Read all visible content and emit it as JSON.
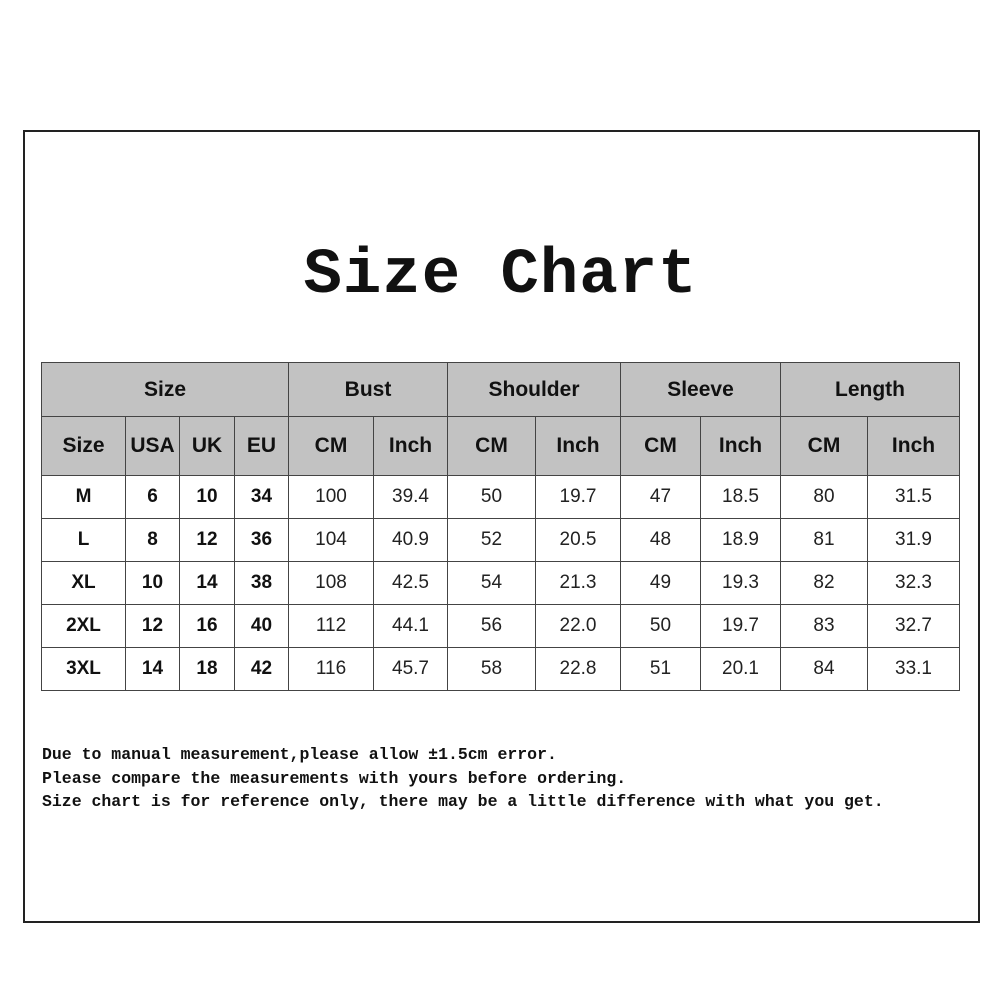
{
  "title": "Size Chart",
  "groups": [
    "Size",
    "Bust",
    "Shoulder",
    "Sleeve",
    "Length"
  ],
  "subheaders": [
    "Size",
    "USA",
    "UK",
    "EU",
    "CM",
    "Inch",
    "CM",
    "Inch",
    "CM",
    "Inch",
    "CM",
    "Inch"
  ],
  "rows": [
    [
      "M",
      "6",
      "10",
      "34",
      "100",
      "39.4",
      "50",
      "19.7",
      "47",
      "18.5",
      "80",
      "31.5"
    ],
    [
      "L",
      "8",
      "12",
      "36",
      "104",
      "40.9",
      "52",
      "20.5",
      "48",
      "18.9",
      "81",
      "31.9"
    ],
    [
      "XL",
      "10",
      "14",
      "38",
      "108",
      "42.5",
      "54",
      "21.3",
      "49",
      "19.3",
      "82",
      "32.3"
    ],
    [
      "2XL",
      "12",
      "16",
      "40",
      "112",
      "44.1",
      "56",
      "22.0",
      "50",
      "19.7",
      "83",
      "32.7"
    ],
    [
      "3XL",
      "14",
      "18",
      "42",
      "116",
      "45.7",
      "58",
      "22.8",
      "51",
      "20.1",
      "84",
      "33.1"
    ]
  ],
  "notes": [
    "Due to manual measurement,please allow ±1.5cm error.",
    "Please compare the measurements with yours before ordering.",
    "Size chart is for reference only, there may be a little difference with what you get."
  ],
  "colors": {
    "header_bg": "#c2c2c2",
    "border": "#444444"
  }
}
